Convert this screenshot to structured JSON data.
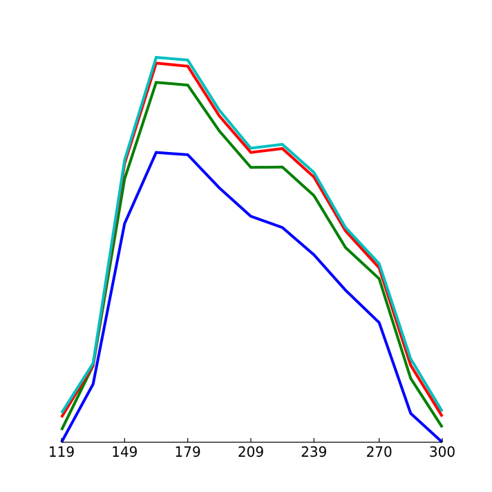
{
  "chart_data": {
    "type": "line",
    "title": "",
    "xlabel": "",
    "ylabel": "",
    "x": [
      119,
      134,
      149,
      164,
      179,
      194,
      209,
      224,
      239,
      254,
      270,
      285,
      300
    ],
    "xticks": [
      119,
      149,
      179,
      209,
      239,
      270,
      300
    ],
    "xlim": [
      119,
      300
    ],
    "ylim": [
      0,
      100
    ],
    "grid": false,
    "legend": "none",
    "series": [
      {
        "color": "#0000ff",
        "values": [
          0,
          15.1,
          56.8,
          75.3,
          74.7,
          66.1,
          58.7,
          55.8,
          48.7,
          39.5,
          31.1,
          7.5,
          0
        ]
      },
      {
        "color": "#008000",
        "values": [
          3.2,
          19.9,
          68.4,
          93.5,
          92.8,
          80.9,
          71.4,
          71.5,
          64.1,
          50.6,
          42.5,
          16.6,
          3.9
        ]
      },
      {
        "color": "#ff0000",
        "values": [
          6.5,
          20.0,
          72.4,
          98.5,
          97.7,
          84.8,
          75.3,
          76.3,
          68.9,
          54.9,
          45.3,
          20.0,
          6.7
        ]
      },
      {
        "color": "#00bfbf",
        "values": [
          7.6,
          20.5,
          73.3,
          100.0,
          99.3,
          86.3,
          76.4,
          77.4,
          70.1,
          55.8,
          46.4,
          21.7,
          8.0
        ]
      }
    ]
  }
}
